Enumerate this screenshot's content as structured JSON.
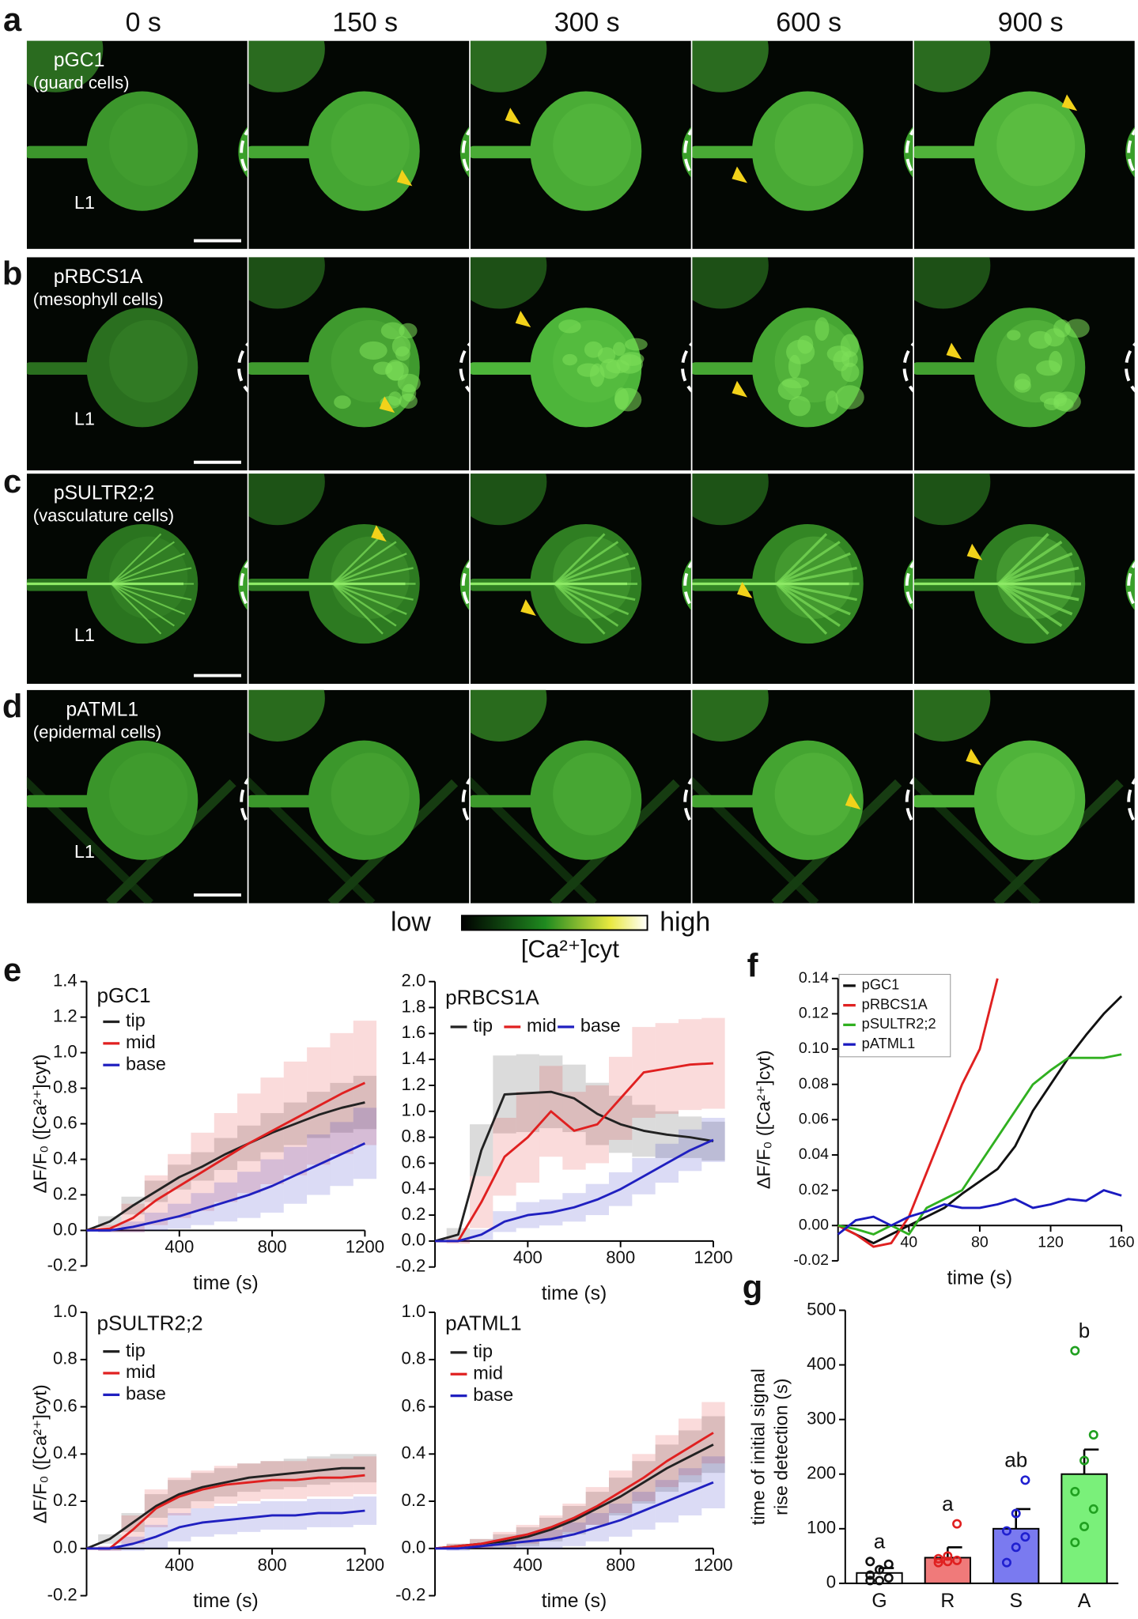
{
  "panel_letters": [
    "a",
    "b",
    "c",
    "d",
    "e",
    "f",
    "g"
  ],
  "time_labels": [
    "0 s",
    "150 s",
    "300 s",
    "600 s",
    "900 s"
  ],
  "rows": [
    {
      "label": "pGC1",
      "sublabel": "(guard cells)",
      "leaf": "L1"
    },
    {
      "label": "pRBCS1A",
      "sublabel": "(mesophyll cells)",
      "leaf": "L1"
    },
    {
      "label": "pSULTR2;2",
      "sublabel": "(vasculature cells)",
      "leaf": "L1"
    },
    {
      "label": "pATML1",
      "sublabel": "(epidermal cells)",
      "leaf": "L1"
    }
  ],
  "colorbar": {
    "low": "low",
    "high": "high",
    "label": "[Ca²⁺]cyt"
  },
  "chart_data": [
    {
      "type": "line",
      "title": "pGC1",
      "xlabel": "time (s)",
      "ylabel": "ΔF/F₀ ([Ca²⁺]cyt)",
      "legend": "upper left",
      "x": [
        0,
        100,
        200,
        300,
        400,
        500,
        600,
        700,
        800,
        900,
        1000,
        1100,
        1200
      ],
      "xlim": [
        0,
        1200
      ],
      "xticks": [
        400,
        800,
        1200
      ],
      "ylim": [
        -0.2,
        1.4
      ],
      "yticks": [
        -0.2,
        {
          "value": 0,
          "label": "0.0"
        },
        0.2,
        0.4,
        0.6,
        0.8,
        {
          "value": 1,
          "label": "1.0"
        },
        1.2,
        1.4
      ],
      "series": [
        {
          "name": "tip",
          "color": "#222222",
          "values": [
            0,
            0.05,
            0.14,
            0.22,
            0.3,
            0.36,
            0.43,
            0.49,
            0.55,
            0.6,
            0.65,
            0.69,
            0.72
          ],
          "error": [
            0,
            0.03,
            0.05,
            0.06,
            0.07,
            0.08,
            0.09,
            0.1,
            0.11,
            0.12,
            0.13,
            0.14,
            0.15
          ]
        },
        {
          "name": "mid",
          "color": "#e02020",
          "values": [
            0,
            0.01,
            0.07,
            0.17,
            0.25,
            0.33,
            0.41,
            0.49,
            0.56,
            0.63,
            0.7,
            0.77,
            0.83
          ],
          "error": [
            0,
            0.02,
            0.08,
            0.14,
            0.18,
            0.22,
            0.25,
            0.28,
            0.3,
            0.32,
            0.33,
            0.34,
            0.35
          ]
        },
        {
          "name": "base",
          "color": "#2020c0",
          "values": [
            0,
            0,
            0.02,
            0.05,
            0.08,
            0.12,
            0.16,
            0.2,
            0.25,
            0.31,
            0.37,
            0.43,
            0.49
          ],
          "error": [
            0,
            0.01,
            0.03,
            0.05,
            0.07,
            0.09,
            0.11,
            0.13,
            0.15,
            0.16,
            0.17,
            0.18,
            0.2
          ]
        }
      ]
    },
    {
      "type": "line",
      "title": "pRBCS1A",
      "xlabel": "time (s)",
      "legend": "upper left",
      "x": [
        0,
        100,
        200,
        300,
        400,
        500,
        600,
        700,
        800,
        900,
        1000,
        1100,
        1200
      ],
      "xlim": [
        0,
        1200
      ],
      "xticks": [
        400,
        800,
        1200
      ],
      "ylim": [
        -0.2,
        2.0
      ],
      "yticks": [
        -0.2,
        {
          "value": 0,
          "label": "0.0"
        },
        0.2,
        0.4,
        0.6,
        0.8,
        {
          "value": 1,
          "label": "1.0"
        },
        1.2,
        1.4,
        1.6,
        1.8,
        {
          "value": 2,
          "label": "2.0"
        }
      ],
      "series": [
        {
          "name": "tip",
          "color": "#222222",
          "values": [
            0,
            0.05,
            0.7,
            1.13,
            1.14,
            1.15,
            1.1,
            0.98,
            0.9,
            0.85,
            0.82,
            0.8,
            0.77
          ],
          "error": [
            0,
            0.05,
            0.2,
            0.3,
            0.3,
            0.28,
            0.26,
            0.24,
            0.22,
            0.2,
            0.18,
            0.16,
            0.15
          ]
        },
        {
          "name": "mid",
          "color": "#e02020",
          "values": [
            0,
            0,
            0.3,
            0.65,
            0.8,
            1.0,
            0.85,
            0.9,
            1.1,
            1.3,
            1.33,
            1.36,
            1.37
          ],
          "error": [
            0,
            0.02,
            0.2,
            0.3,
            0.35,
            0.35,
            0.3,
            0.3,
            0.32,
            0.35,
            0.35,
            0.35,
            0.35
          ]
        },
        {
          "name": "base",
          "color": "#2020c0",
          "values": [
            0,
            0,
            0.05,
            0.15,
            0.2,
            0.22,
            0.26,
            0.32,
            0.4,
            0.5,
            0.6,
            0.7,
            0.78
          ],
          "error": [
            0,
            0.01,
            0.04,
            0.08,
            0.1,
            0.1,
            0.11,
            0.12,
            0.13,
            0.14,
            0.15,
            0.16,
            0.17
          ]
        }
      ]
    },
    {
      "type": "line",
      "title": "pSULTR2;2",
      "xlabel": "time (s)",
      "ylabel": "ΔF/F₀ ([Ca²⁺]cyt)",
      "legend": "upper left",
      "x": [
        0,
        100,
        200,
        300,
        400,
        500,
        600,
        700,
        800,
        900,
        1000,
        1100,
        1200
      ],
      "xlim": [
        0,
        1200
      ],
      "xticks": [
        400,
        800,
        1200
      ],
      "ylim": [
        -0.2,
        1.0
      ],
      "yticks": [
        -0.2,
        {
          "value": 0,
          "label": "0.0"
        },
        0.2,
        0.4,
        0.6,
        0.8,
        {
          "value": 1,
          "label": "1.0"
        }
      ],
      "series": [
        {
          "name": "tip",
          "color": "#222222",
          "values": [
            0,
            0.04,
            0.11,
            0.18,
            0.23,
            0.26,
            0.28,
            0.3,
            0.31,
            0.32,
            0.33,
            0.34,
            0.34
          ],
          "error": [
            0,
            0.02,
            0.04,
            0.05,
            0.06,
            0.06,
            0.06,
            0.06,
            0.06,
            0.06,
            0.06,
            0.06,
            0.06
          ]
        },
        {
          "name": "mid",
          "color": "#e02020",
          "values": [
            0,
            0,
            0.08,
            0.17,
            0.22,
            0.25,
            0.27,
            0.28,
            0.29,
            0.29,
            0.3,
            0.3,
            0.31
          ],
          "error": [
            0,
            0.01,
            0.06,
            0.08,
            0.08,
            0.08,
            0.08,
            0.08,
            0.08,
            0.08,
            0.08,
            0.08,
            0.08
          ]
        },
        {
          "name": "base",
          "color": "#2020c0",
          "values": [
            0,
            0,
            0.02,
            0.05,
            0.09,
            0.11,
            0.12,
            0.13,
            0.14,
            0.14,
            0.15,
            0.15,
            0.16
          ],
          "error": [
            0,
            0.01,
            0.03,
            0.05,
            0.06,
            0.06,
            0.06,
            0.06,
            0.06,
            0.06,
            0.06,
            0.06,
            0.06
          ]
        }
      ]
    },
    {
      "type": "line",
      "title": "pATML1",
      "xlabel": "time (s)",
      "legend": "upper left",
      "x": [
        0,
        100,
        200,
        300,
        400,
        500,
        600,
        700,
        800,
        900,
        1000,
        1100,
        1200
      ],
      "xlim": [
        0,
        1200
      ],
      "xticks": [
        400,
        800,
        1200
      ],
      "ylim": [
        -0.2,
        1.0
      ],
      "yticks": [
        -0.2,
        {
          "value": 0,
          "label": "0.0"
        },
        0.2,
        0.4,
        0.6,
        0.8,
        {
          "value": 1,
          "label": "1.0"
        }
      ],
      "series": [
        {
          "name": "tip",
          "color": "#222222",
          "values": [
            0,
            0.01,
            0.02,
            0.03,
            0.05,
            0.08,
            0.12,
            0.17,
            0.22,
            0.28,
            0.34,
            0.39,
            0.44
          ],
          "error": [
            0,
            0.01,
            0.02,
            0.03,
            0.04,
            0.05,
            0.06,
            0.07,
            0.08,
            0.09,
            0.1,
            0.11,
            0.12
          ]
        },
        {
          "name": "mid",
          "color": "#e02020",
          "values": [
            0,
            0.01,
            0.02,
            0.04,
            0.06,
            0.09,
            0.13,
            0.18,
            0.24,
            0.3,
            0.37,
            0.43,
            0.49
          ],
          "error": [
            0,
            0.01,
            0.02,
            0.03,
            0.04,
            0.05,
            0.06,
            0.08,
            0.09,
            0.1,
            0.11,
            0.12,
            0.13
          ]
        },
        {
          "name": "base",
          "color": "#2020c0",
          "values": [
            0,
            0,
            0.01,
            0.02,
            0.03,
            0.04,
            0.06,
            0.09,
            0.12,
            0.16,
            0.2,
            0.24,
            0.28
          ],
          "error": [
            0,
            0.01,
            0.01,
            0.02,
            0.03,
            0.04,
            0.05,
            0.06,
            0.07,
            0.08,
            0.09,
            0.1,
            0.11
          ]
        }
      ]
    },
    {
      "type": "line",
      "xlabel": "time (s)",
      "ylabel": "ΔF/F₀ ([Ca²⁺]cyt)",
      "legend": "upper left",
      "x": [
        0,
        10,
        20,
        30,
        40,
        50,
        60,
        70,
        80,
        90,
        100,
        110,
        120,
        130,
        140,
        150,
        160
      ],
      "xlim": [
        0,
        160
      ],
      "xticks": [
        40,
        80,
        120,
        160
      ],
      "ylim": [
        -0.02,
        0.14
      ],
      "yticks": [
        -0.02,
        {
          "value": 0,
          "label": "0.00"
        },
        0.02,
        0.04,
        0.06,
        0.08,
        {
          "value": 0.1,
          "label": "0.10"
        },
        0.12,
        0.14
      ],
      "series": [
        {
          "name": "pGC1",
          "color": "#111111",
          "values": [
            0,
            -0.005,
            -0.01,
            -0.005,
            0,
            0.005,
            0.01,
            0.018,
            0.025,
            0.032,
            0.045,
            0.065,
            0.08,
            0.095,
            0.108,
            0.12,
            0.13
          ]
        },
        {
          "name": "pRBCS1A",
          "color": "#e02020",
          "values": [
            0,
            -0.005,
            -0.012,
            -0.01,
            0.005,
            0.03,
            0.055,
            0.08,
            0.1,
            0.14,
            null,
            null,
            null,
            null,
            null,
            null,
            null
          ]
        },
        {
          "name": "pSULTR2;2",
          "color": "#30b020",
          "values": [
            0,
            -0.002,
            -0.005,
            0,
            -0.005,
            0.01,
            0.015,
            0.02,
            0.035,
            0.05,
            0.065,
            0.08,
            0.088,
            0.095,
            0.095,
            0.095,
            0.097
          ]
        },
        {
          "name": "pATML1",
          "color": "#1a1ac0",
          "values": [
            -0.005,
            0.003,
            0.005,
            0,
            0.005,
            0.008,
            0.012,
            0.01,
            0.01,
            0.012,
            0.015,
            0.01,
            0.012,
            0.015,
            0.014,
            0.02,
            0.017
          ]
        }
      ]
    },
    {
      "type": "bar",
      "ylabel": "time of initial signal\nrise detection (s)",
      "categories": [
        "G",
        "R",
        "S",
        "A"
      ],
      "values": [
        19,
        47,
        100,
        200
      ],
      "error": [
        9,
        19,
        36,
        45
      ],
      "colors": [
        "#ffffff",
        "#f07a7a",
        "#7a7af0",
        "#7af07a"
      ],
      "point_colors": [
        "#111111",
        "#e02020",
        "#2020d0",
        "#20a020"
      ],
      "points": [
        [
          5,
          5,
          10,
          15,
          25,
          35,
          40
        ],
        [
          38,
          40,
          42,
          45,
          50,
          109
        ],
        [
          38,
          66,
          85,
          96,
          128,
          189
        ],
        [
          75,
          104,
          136,
          168,
          225,
          272,
          426
        ]
      ],
      "letters": [
        "a",
        "a",
        "ab",
        "b"
      ],
      "ylim": [
        0,
        500
      ],
      "yticks": [
        0,
        100,
        200,
        300,
        400,
        500
      ]
    }
  ]
}
